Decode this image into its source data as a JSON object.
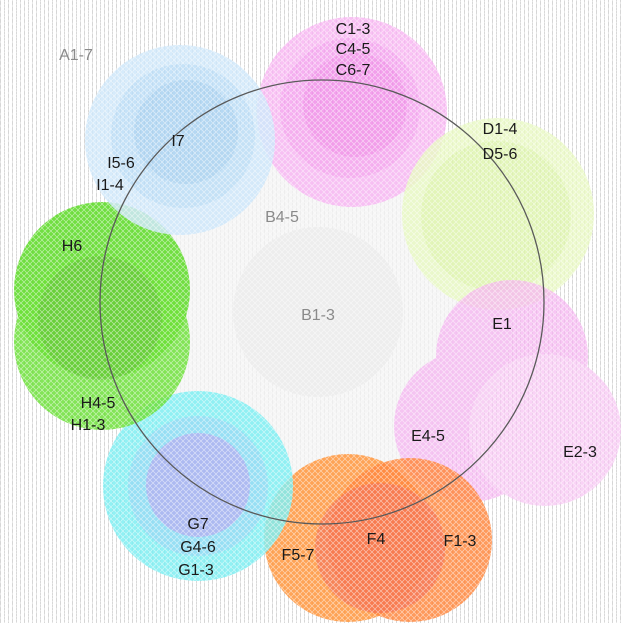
{
  "labels": {
    "a": "A1-7",
    "b1": "B1-3",
    "b2": "B4-5",
    "c1": "C1-3",
    "c2": "C4-5",
    "c3": "C6-7",
    "d1": "D1-4",
    "d2": "D5-6",
    "e1": "E1",
    "e2": "E2-3",
    "e3": "E4-5",
    "f1": "F1-3",
    "f2": "F4",
    "f3": "F5-7",
    "g1": "G1-3",
    "g2": "G4-6",
    "g3": "G7",
    "h1": "H1-3",
    "h2": "H4-5",
    "h3": "H6",
    "i1": "I1-4",
    "i2": "I5-6",
    "i3": "I7"
  },
  "colors": {
    "background_hatch": "#d9d9d9",
    "ring": "#555555",
    "b_fill": "#ebebeb",
    "c": "#f59af0",
    "d": "#e2f7b0",
    "e": "#f7a8f2",
    "f": "#ff8a2e",
    "f_overlap": "#f0705a",
    "g": "#6ce8ee",
    "g_inner": "#b6a8f0",
    "h": "#6fe03e",
    "i": "#bfe0f8"
  }
}
